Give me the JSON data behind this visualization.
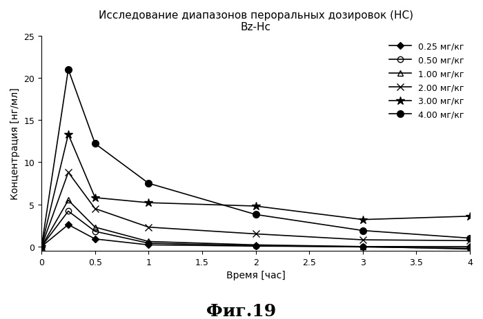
{
  "title_line1": "Исследование диапазонов пероральных дозировок (НС)",
  "title_line2": "Bz-Hc",
  "xlabel": "Время [час]",
  "ylabel": "Концентрация [нг/мл]",
  "fig_label": "Фиг.19",
  "xlim": [
    0,
    4
  ],
  "ylim": [
    -0.5,
    25
  ],
  "xticks": [
    0,
    0.5,
    1,
    1.5,
    2,
    2.5,
    3,
    3.5,
    4
  ],
  "xtick_labels": [
    "0",
    "0.5",
    "1",
    "1.5",
    "2",
    "2.5",
    "3",
    "3.5",
    "4"
  ],
  "yticks": [
    0,
    5,
    10,
    15,
    20,
    25
  ],
  "series": [
    {
      "label": "0.25 мг/кг",
      "x": [
        0,
        0.25,
        0.5,
        1,
        2,
        3,
        4
      ],
      "y": [
        0,
        2.6,
        0.9,
        0.2,
        0.05,
        0.0,
        0.0
      ],
      "marker": "D",
      "markersize": 5,
      "fillstyle": "full"
    },
    {
      "label": "0.50 мг/кг",
      "x": [
        0,
        0.25,
        0.5,
        1,
        2,
        3,
        4
      ],
      "y": [
        0,
        4.2,
        1.8,
        0.4,
        0.1,
        -0.05,
        -0.2
      ],
      "marker": "o",
      "markersize": 6,
      "fillstyle": "none"
    },
    {
      "label": "1.00 мг/кг",
      "x": [
        0,
        0.25,
        0.5,
        1,
        2,
        3,
        4
      ],
      "y": [
        0,
        5.5,
        2.3,
        0.6,
        0.2,
        0.0,
        -0.3
      ],
      "marker": "^",
      "markersize": 6,
      "fillstyle": "none"
    },
    {
      "label": "2.00 мг/кг",
      "x": [
        0,
        0.25,
        0.5,
        1,
        2,
        3,
        4
      ],
      "y": [
        0,
        8.8,
        4.5,
        2.3,
        1.5,
        0.8,
        0.7
      ],
      "marker": "x",
      "markersize": 7,
      "fillstyle": "full"
    },
    {
      "label": "3.00 мг/кг",
      "x": [
        0,
        0.25,
        0.5,
        1,
        2,
        3,
        4
      ],
      "y": [
        0,
        13.3,
        5.8,
        5.2,
        4.8,
        3.2,
        3.6
      ],
      "marker": "*",
      "markersize": 9,
      "fillstyle": "full"
    },
    {
      "label": "4.00 мг/кг",
      "x": [
        0,
        0.25,
        0.5,
        1,
        2,
        3,
        4
      ],
      "y": [
        0,
        21.0,
        12.2,
        7.5,
        3.8,
        1.9,
        1.0
      ],
      "marker": "o",
      "markersize": 7,
      "fillstyle": "full"
    }
  ],
  "background_color": "#ffffff",
  "title_fontsize": 11,
  "axis_label_fontsize": 10,
  "tick_fontsize": 9,
  "legend_fontsize": 9,
  "fig_label_fontsize": 18
}
